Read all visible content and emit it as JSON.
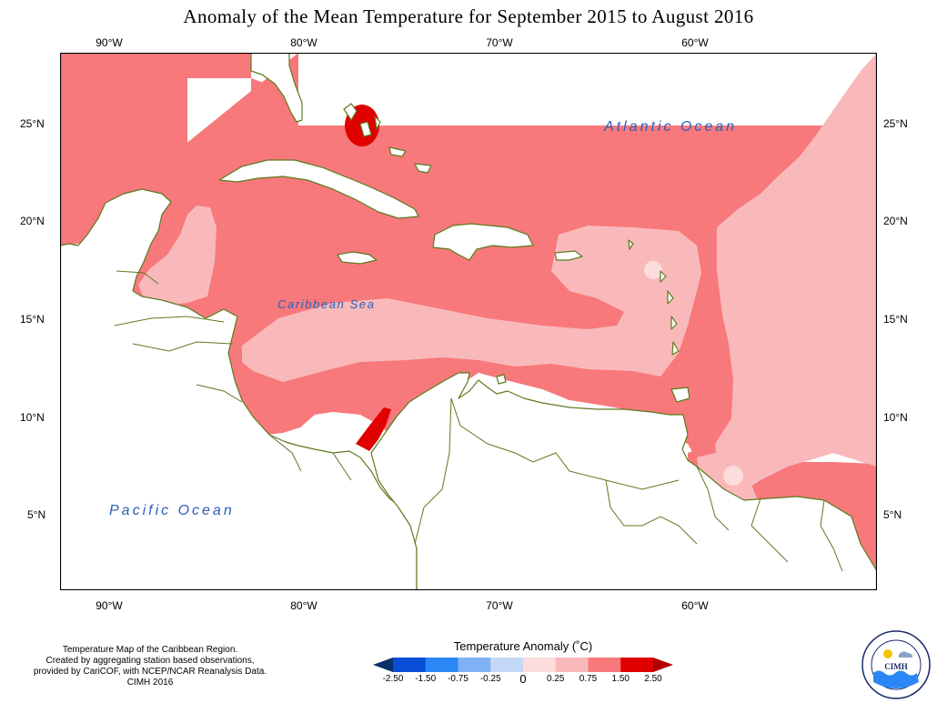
{
  "title": "Anomaly of the Mean Temperature for September 2015 to August 2016",
  "longitude_labels": [
    "90°W",
    "80°W",
    "70°W",
    "60°W"
  ],
  "latitude_labels_left": [
    "25°N",
    "20°N",
    "15°N",
    "10°N",
    "5°N"
  ],
  "latitude_labels_right": [
    "25°N",
    "20°N",
    "15°N",
    "10°N",
    "5°N"
  ],
  "ocean_labels": {
    "atlantic": "Atlantic Ocean",
    "caribbean": "Caribbean Sea",
    "pacific": "Pacific Ocean"
  },
  "colors": {
    "anomaly_0_to_0_25": "#fcdcdc",
    "anomaly_0_25_to_0_75": "#f9b9bb",
    "anomaly_0_75_to_1_50": "#f7797b",
    "anomaly_1_50_to_2_50": "#e00000",
    "anomaly_above_2_50": "#b30000",
    "coastline": "#5d7a1e",
    "ocean_text": "#2b5fb8"
  },
  "credits": [
    "Temperature Map of the Caribbean Region.",
    "Created by aggregating station based observations,",
    "provided by CariCOF, with NCEP/NCAR Reanalysis Data.",
    "CIMH 2016"
  ],
  "legend": {
    "title": "Temperature Anomaly (˚C)",
    "tick_labels": [
      "-2.50",
      "-1.50",
      "-0.75",
      "-0.25",
      "0",
      "0.25",
      "0.75",
      "1.50",
      "2.50"
    ],
    "colors": [
      "#08306b",
      "#0a4dd6",
      "#2a87f5",
      "#7fb2f5",
      "#c4d8f7",
      "#fcdcdc",
      "#f9b9bb",
      "#f7797b",
      "#e00000",
      "#b30000"
    ]
  },
  "logo": {
    "name": "CIMH",
    "icon": "cimh-logo-icon"
  }
}
